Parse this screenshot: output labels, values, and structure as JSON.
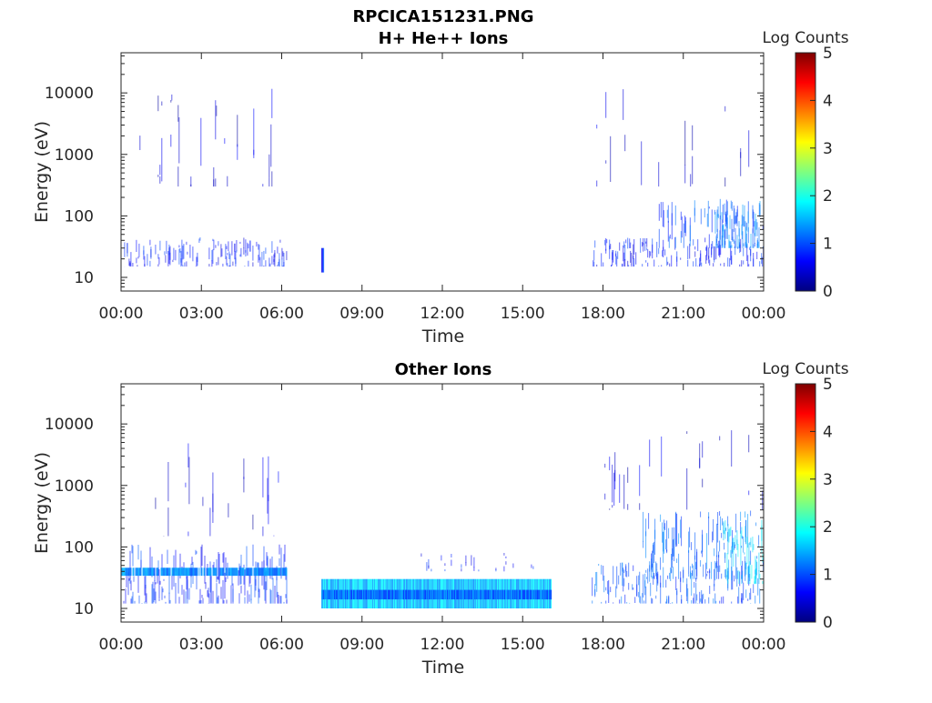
{
  "figure": {
    "title": "RPCICA151231.PNG",
    "colorbar_label": "Log Counts",
    "colorbar_ticks": [
      "0",
      "1",
      "2",
      "3",
      "4",
      "5"
    ],
    "colormap": [
      "#00007f",
      "#0000ff",
      "#007fff",
      "#00ffff",
      "#7fff7f",
      "#ffff00",
      "#ff7f00",
      "#ff0000",
      "#7f0000"
    ]
  },
  "chart_data": [
    {
      "type": "heatmap",
      "title": "H+ He++ Ions",
      "xlabel": "Time",
      "ylabel": "Energy (eV)",
      "x_ticks": [
        "00:00",
        "03:00",
        "06:00",
        "09:00",
        "12:00",
        "15:00",
        "18:00",
        "21:00",
        "00:00"
      ],
      "xlim_hours": [
        0,
        24
      ],
      "y_ticks": [
        "10",
        "100",
        "1000",
        "10000"
      ],
      "y_scale": "log",
      "ylim": [
        6,
        45000
      ],
      "clim": [
        0,
        5
      ],
      "regions": [
        {
          "t": [
            0.1,
            6.2
          ],
          "e": [
            15,
            45
          ],
          "level": 0.7,
          "density": 0.5
        },
        {
          "t": [
            0.3,
            6.0
          ],
          "e": [
            300,
            12000
          ],
          "level": 0.4,
          "density": 0.08
        },
        {
          "t": [
            7.5,
            7.6
          ],
          "e": [
            12,
            30
          ],
          "level": 0.8,
          "density": 1.0
        },
        {
          "t": [
            17.6,
            24
          ],
          "e": [
            15,
            45
          ],
          "level": 0.7,
          "density": 0.45
        },
        {
          "t": [
            17.6,
            24
          ],
          "e": [
            300,
            12000
          ],
          "level": 0.4,
          "density": 0.08
        },
        {
          "t": [
            20.0,
            24
          ],
          "e": [
            30,
            200
          ],
          "level": 1.0,
          "density": 0.5
        },
        {
          "t": [
            22.2,
            23.9
          ],
          "e": [
            30,
            180
          ],
          "level": 1.2,
          "density": 0.8
        }
      ]
    },
    {
      "type": "heatmap",
      "title": "Other Ions",
      "xlabel": "Time",
      "ylabel": "Energy (eV)",
      "x_ticks": [
        "00:00",
        "03:00",
        "06:00",
        "09:00",
        "12:00",
        "15:00",
        "18:00",
        "21:00",
        "00:00"
      ],
      "xlim_hours": [
        0,
        24
      ],
      "y_ticks": [
        "10",
        "100",
        "1000",
        "10000"
      ],
      "y_scale": "log",
      "ylim": [
        6,
        45000
      ],
      "clim": [
        0,
        5
      ],
      "regions": [
        {
          "t": [
            0,
            6.2
          ],
          "e": [
            12,
            110
          ],
          "level": 0.8,
          "density": 0.6
        },
        {
          "t": [
            0,
            6.2
          ],
          "e": [
            34,
            46
          ],
          "level": 1.3,
          "density": 0.9
        },
        {
          "t": [
            0.2,
            6.0
          ],
          "e": [
            150,
            5000
          ],
          "level": 0.4,
          "density": 0.08
        },
        {
          "t": [
            7.5,
            16.1
          ],
          "e": [
            10,
            30
          ],
          "level": 1.6,
          "density": 1.0
        },
        {
          "t": [
            7.5,
            16.1
          ],
          "e": [
            14,
            20
          ],
          "level": 1.1,
          "density": 1.0
        },
        {
          "t": [
            10.5,
            16.1
          ],
          "e": [
            40,
            80
          ],
          "level": 0.7,
          "density": 0.1
        },
        {
          "t": [
            17.6,
            24
          ],
          "e": [
            12,
            60
          ],
          "level": 1.0,
          "density": 0.6
        },
        {
          "t": [
            19.5,
            24
          ],
          "e": [
            30,
            400
          ],
          "level": 1.1,
          "density": 0.6
        },
        {
          "t": [
            22.5,
            24
          ],
          "e": [
            25,
            300
          ],
          "level": 1.7,
          "density": 0.8
        },
        {
          "t": [
            17.6,
            24
          ],
          "e": [
            400,
            8000
          ],
          "level": 0.4,
          "density": 0.08
        }
      ]
    }
  ]
}
